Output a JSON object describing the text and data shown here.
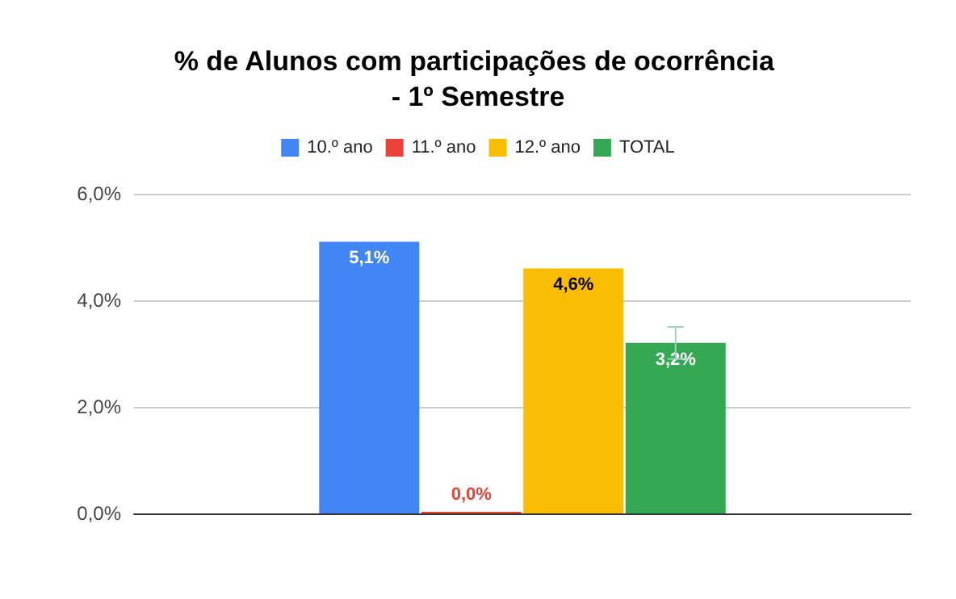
{
  "chart_data": {
    "type": "bar",
    "title": "% de Alunos com participações de ocorrência - 1º Semestre",
    "categories": [
      null
    ],
    "series": [
      {
        "name": "10.º ano",
        "color": "#4285f4",
        "values": [
          5.1
        ],
        "value_labels": [
          "5,1%"
        ]
      },
      {
        "name": "11.º ano",
        "color": "#ea4335",
        "values": [
          0.0
        ],
        "value_labels": [
          "0,0%"
        ]
      },
      {
        "name": "12.º ano",
        "color": "#fbbc04",
        "values": [
          4.6
        ],
        "value_labels": [
          "4,6%"
        ]
      },
      {
        "name": "TOTAL",
        "color": "#34a853",
        "values": [
          3.2
        ],
        "value_labels": [
          "3,2%"
        ],
        "errors": [
          0.3
        ]
      }
    ],
    "ylim": [
      0,
      6
    ],
    "yticks": [
      {
        "value": 0,
        "label": "0,0%"
      },
      {
        "value": 2,
        "label": "2,0%"
      },
      {
        "value": 4,
        "label": "4,0%"
      },
      {
        "value": 6,
        "label": "6,0%"
      }
    ],
    "grid": "y",
    "legend": "top"
  }
}
